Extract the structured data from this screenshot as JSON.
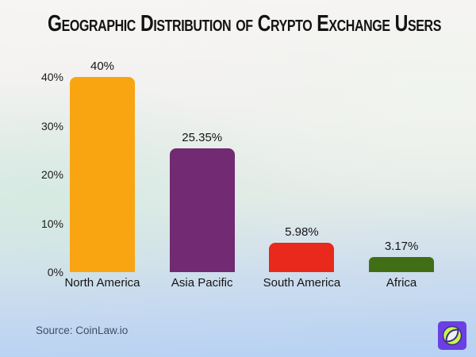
{
  "title": "Geographic Distribution of Crypto Exchange Users",
  "source": {
    "text": "Source: CoinLaw.io"
  },
  "branding": {
    "logo_icon": "coinlaw-compass-leaf-logo",
    "logo_bg_color": "#6B40E3",
    "logo_circle_color": "#C7F550",
    "logo_stroke_color": "#3E2C85"
  },
  "colors": {
    "title_text": "#131313",
    "axis_text": "#1b1b1b",
    "source_text": "#3E4E62",
    "background_top": "#F7F5F4",
    "background_bottom": "#B6D1F4"
  },
  "chart_data": {
    "type": "bar",
    "title": "Geographic Distribution of Crypto Exchange Users",
    "categories": [
      "North America",
      "Asia Pacific",
      "South America",
      "Africa"
    ],
    "values": [
      40,
      25.35,
      5.98,
      3.17
    ],
    "value_labels": [
      "40%",
      "25.35%",
      "5.98%",
      "3.17%"
    ],
    "bar_colors": [
      "#F9A511",
      "#722A72",
      "#E9291B",
      "#406E14"
    ],
    "xlabel": "",
    "ylabel": "",
    "ylim": [
      0,
      40
    ],
    "yticks": [
      0,
      10,
      20,
      30,
      40
    ],
    "ytick_labels": [
      "0%",
      "10%",
      "20%",
      "30%",
      "40%"
    ],
    "grid": false,
    "legend": false,
    "source": "Source: CoinLaw.io"
  }
}
